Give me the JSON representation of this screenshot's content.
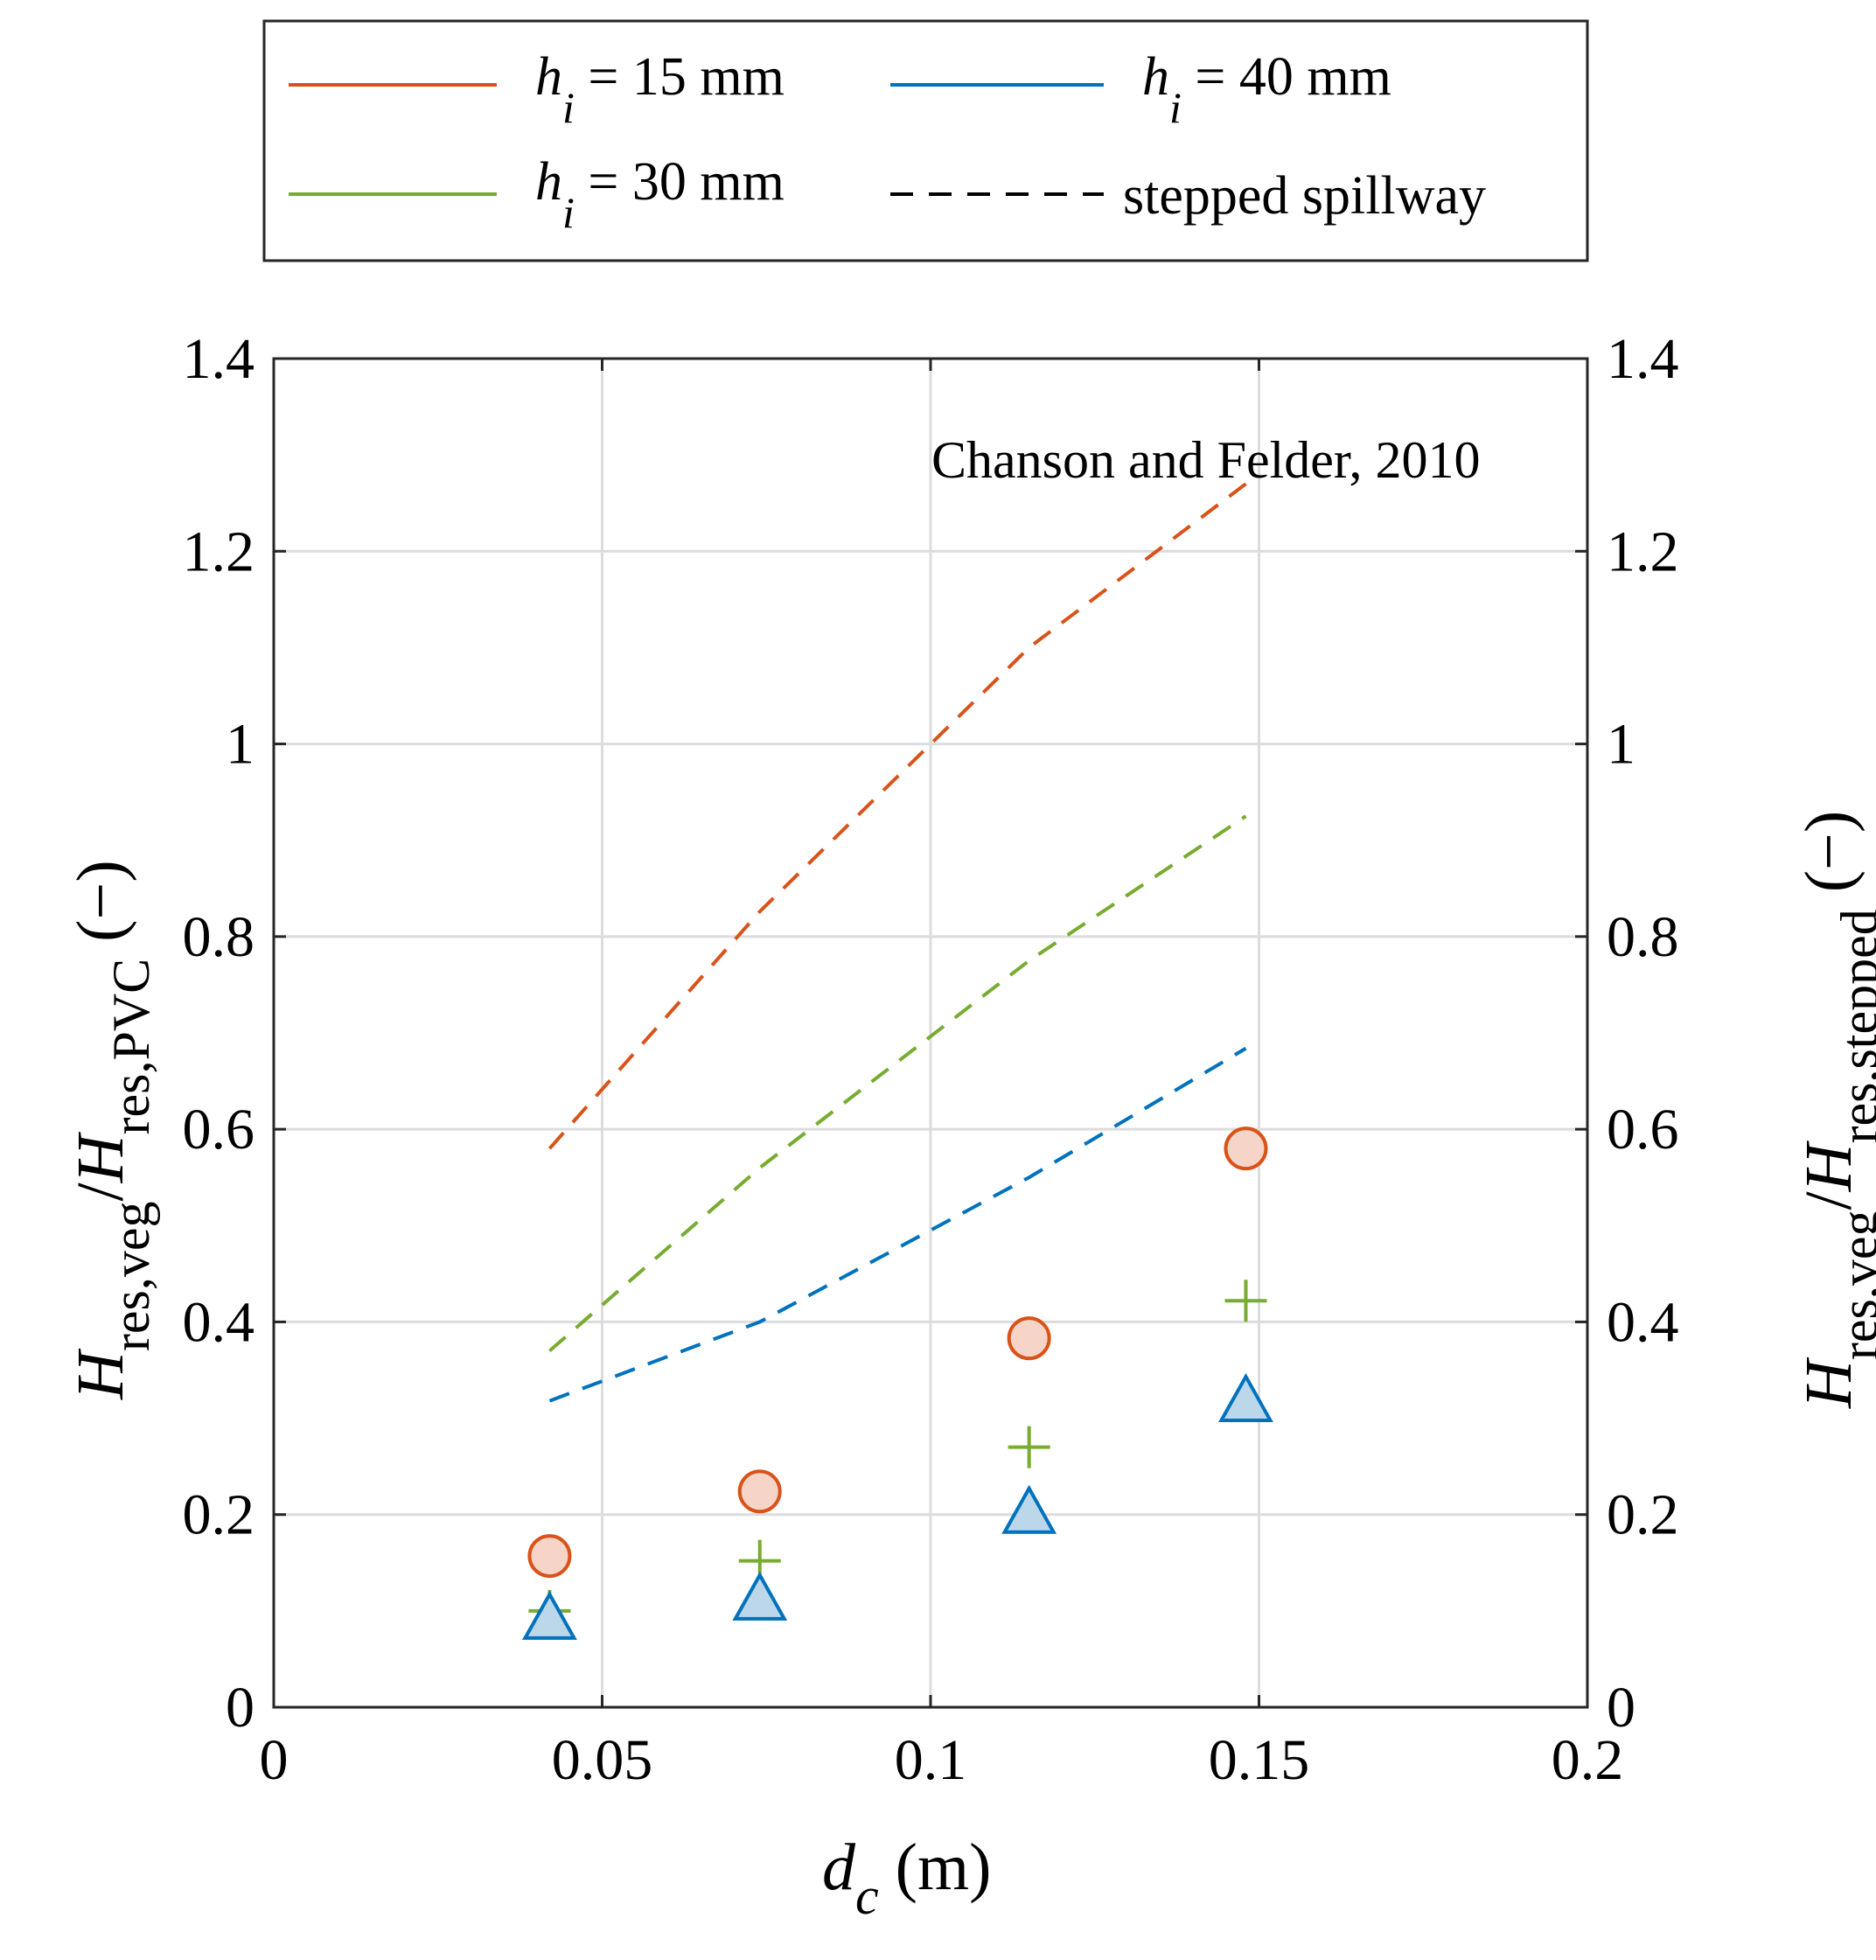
{
  "chart_data": {
    "type": "scatter",
    "title": "",
    "xlabel": {
      "main": "d",
      "sub": "c",
      "unit": " (m)"
    },
    "ylabel_left": {
      "h1": "H",
      "s1": "res,veg",
      "slash": "/",
      "h2": "H",
      "s2": "res,PVC",
      "unit": " (−)"
    },
    "ylabel_right": {
      "h1": "H",
      "s1": "res,veg",
      "slash": "/",
      "h2": "H",
      "s2": "res,stepped",
      "unit": " (−)"
    },
    "xlim": [
      0,
      0.2
    ],
    "ylim": [
      0,
      1.4
    ],
    "xticks": [
      0,
      0.05,
      0.1,
      0.15,
      0.2
    ],
    "xtick_labels": [
      "0",
      "0.05",
      "0.1",
      "0.15",
      "0.2"
    ],
    "yticks": [
      0,
      0.2,
      0.4,
      0.6,
      0.8,
      1,
      1.2,
      1.4
    ],
    "ytick_labels": [
      "0",
      "0.2",
      "0.4",
      "0.6",
      "0.8",
      "1",
      "1.2",
      "1.4"
    ],
    "grid": true,
    "annotation": "Chanson and Felder, 2010",
    "series": [
      {
        "name": "hi15",
        "legend_var": "h",
        "legend_sub": "i",
        "legend_rest": " = 15 mm",
        "color": "#D95319",
        "marker": "circle",
        "fill": "#F7D4C8",
        "x": [
          0.042,
          0.074,
          0.115,
          0.148
        ],
        "y": [
          0.157,
          0.224,
          0.383,
          0.58
        ]
      },
      {
        "name": "hi30",
        "legend_var": "h",
        "legend_sub": "i",
        "legend_rest": " = 30 mm",
        "color": "#77AC30",
        "marker": "plus",
        "fill": "none",
        "x": [
          0.042,
          0.074,
          0.115,
          0.148
        ],
        "y": [
          0.1,
          0.152,
          0.27,
          0.422
        ]
      },
      {
        "name": "hi40",
        "legend_var": "h",
        "legend_sub": "i",
        "legend_rest": " = 40 mm",
        "color": "#0072BD",
        "marker": "triangle",
        "fill": "#BDD7EA",
        "x": [
          0.042,
          0.074,
          0.115,
          0.148
        ],
        "y": [
          0.09,
          0.11,
          0.2,
          0.316
        ]
      }
    ],
    "stepped_spillway": {
      "legend_label": "stepped spillway",
      "legend_color": "#000000",
      "lines": [
        {
          "name": "stepped-15",
          "color": "#D95319",
          "x": [
            0.042,
            0.074,
            0.115,
            0.148
          ],
          "y": [
            0.58,
            0.826,
            1.1,
            1.27
          ]
        },
        {
          "name": "stepped-30",
          "color": "#77AC30",
          "x": [
            0.042,
            0.074,
            0.115,
            0.148
          ],
          "y": [
            0.37,
            0.56,
            0.775,
            0.925
          ]
        },
        {
          "name": "stepped-40",
          "color": "#0072BD",
          "x": [
            0.042,
            0.074,
            0.115,
            0.148
          ],
          "y": [
            0.318,
            0.4,
            0.55,
            0.684
          ]
        }
      ]
    }
  }
}
